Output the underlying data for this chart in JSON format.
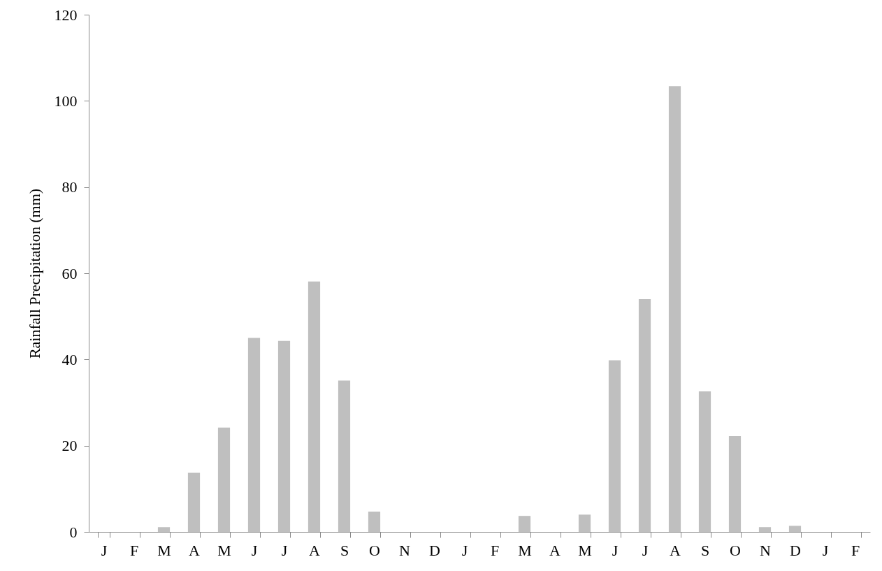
{
  "chart_data": {
    "type": "bar",
    "ylabel": "Rainfall Precipitation (mm)",
    "categories": [
      "J",
      "F",
      "M",
      "A",
      "M",
      "J",
      "J",
      "A",
      "S",
      "O",
      "N",
      "D",
      "J",
      "F",
      "M",
      "A",
      "M",
      "J",
      "J",
      "A",
      "S",
      "O",
      "N",
      "D",
      "J",
      "F"
    ],
    "values": [
      0,
      0,
      1.1,
      13.7,
      24.2,
      45.0,
      44.3,
      58.1,
      35.1,
      4.7,
      0,
      0,
      0,
      0,
      3.7,
      0,
      4.0,
      39.8,
      54.0,
      103.4,
      32.6,
      22.2,
      1.1,
      1.4,
      0,
      0
    ],
    "color": "#bfbfbf",
    "ylim": [
      0,
      120
    ],
    "yticks": [
      0,
      20,
      40,
      60,
      80,
      100,
      120
    ]
  }
}
